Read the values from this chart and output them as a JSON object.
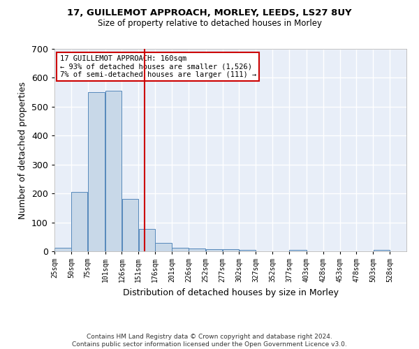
{
  "title1": "17, GUILLEMOT APPROACH, MORLEY, LEEDS, LS27 8UY",
  "title2": "Size of property relative to detached houses in Morley",
  "xlabel": "Distribution of detached houses by size in Morley",
  "ylabel": "Number of detached properties",
  "footer1": "Contains HM Land Registry data © Crown copyright and database right 2024.",
  "footer2": "Contains public sector information licensed under the Open Government Licence v3.0.",
  "annotation_lines": [
    "17 GUILLEMOT APPROACH: 160sqm",
    "← 93% of detached houses are smaller (1,526)",
    "7% of semi-detached houses are larger (111) →"
  ],
  "bar_edges": [
    25,
    50,
    75,
    101,
    126,
    151,
    176,
    201,
    226,
    252,
    277,
    302,
    327,
    352,
    377,
    403,
    428,
    453,
    478,
    503,
    528
  ],
  "bar_heights": [
    12,
    205,
    550,
    555,
    180,
    78,
    28,
    12,
    10,
    8,
    8,
    5,
    0,
    0,
    5,
    0,
    0,
    0,
    0,
    5
  ],
  "bar_color": "#c8d8e8",
  "bar_edgecolor": "#5588bb",
  "property_size": 160,
  "vline_color": "#cc0000",
  "ylim": [
    0,
    700
  ],
  "yticks": [
    0,
    100,
    200,
    300,
    400,
    500,
    600,
    700
  ],
  "background_color": "#e8eef8",
  "grid_color": "#ffffff",
  "annotation_box_color": "#ffffff",
  "annotation_box_edgecolor": "#cc0000",
  "tick_labels": [
    "25sqm",
    "50sqm",
    "75sqm",
    "101sqm",
    "126sqm",
    "151sqm",
    "176sqm",
    "201sqm",
    "226sqm",
    "252sqm",
    "277sqm",
    "302sqm",
    "327sqm",
    "352sqm",
    "377sqm",
    "403sqm",
    "428sqm",
    "453sqm",
    "478sqm",
    "503sqm",
    "528sqm"
  ]
}
